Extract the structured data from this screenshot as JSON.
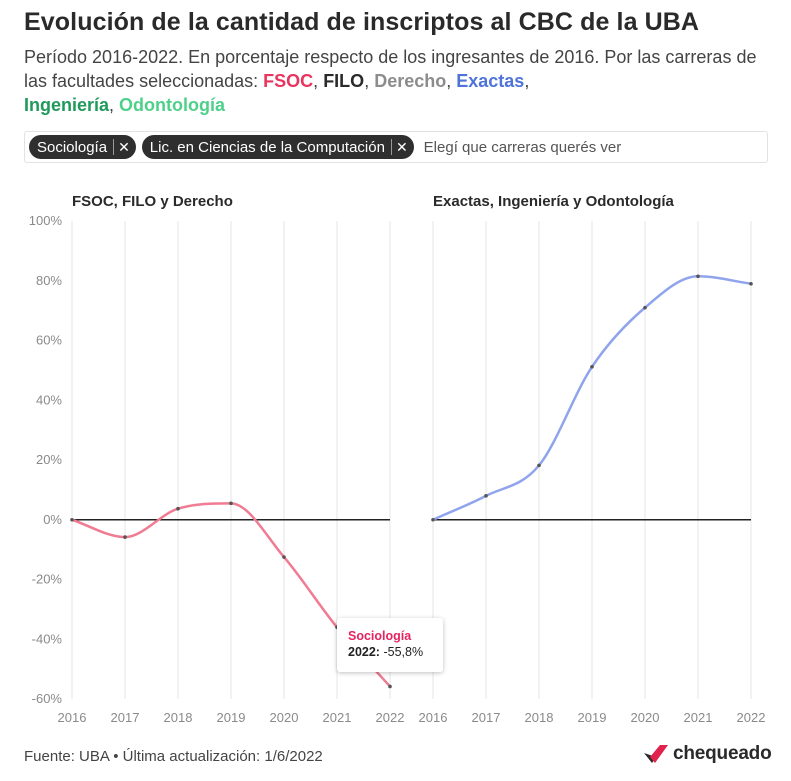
{
  "header": {
    "title": "Evolución de la cantidad de inscriptos al CBC de la UBA",
    "subtitle_text": "Período 2016-2022. En porcentaje respecto de los ingresantes de 2016. Por las carreras de las facultades seleccionadas: ",
    "faculties": [
      {
        "label": "FSOC",
        "color": "#e8355f"
      },
      {
        "label": "FILO",
        "color": "#2a2a2a"
      },
      {
        "label": "Derecho",
        "color": "#8c8c8c"
      },
      {
        "label": "Exactas",
        "color": "#4f73d9"
      },
      {
        "label": "Ingeniería",
        "color": "#1f9a5a"
      },
      {
        "label": "Odontología",
        "color": "#4fd08a"
      }
    ],
    "sep_comma": ",",
    "sep_comma_space": ", "
  },
  "filter": {
    "chips": [
      {
        "label": "Sociología",
        "remove_glyph": "✕"
      },
      {
        "label": "Lic. en Ciencias de la Computación",
        "remove_glyph": "✕"
      }
    ],
    "placeholder": "Elegí que carreras querés ver"
  },
  "chart_data": [
    {
      "type": "line",
      "title": "FSOC, FILO y Derecho",
      "x": [
        2016,
        2017,
        2018,
        2019,
        2020,
        2021,
        2022
      ],
      "ylim": [
        -60,
        100
      ],
      "yticks": [
        -60,
        -40,
        -20,
        0,
        20,
        40,
        60,
        80,
        100
      ],
      "ytick_labels": [
        "-60%",
        "-40%",
        "-20%",
        "0%",
        "20%",
        "40%",
        "60%",
        "80%",
        "100%"
      ],
      "xtick_labels": [
        "2016",
        "2017",
        "2018",
        "2019",
        "2020",
        "2021",
        "2022"
      ],
      "grid": "vertical",
      "series": [
        {
          "name": "Sociología",
          "color": "#f07b92",
          "values": [
            0,
            -5.8,
            3.7,
            5.5,
            -12.5,
            -36,
            -55.8
          ]
        }
      ]
    },
    {
      "type": "line",
      "title": "Exactas, Ingeniería y Odontología",
      "x": [
        2016,
        2017,
        2018,
        2019,
        2020,
        2021,
        2022
      ],
      "ylim": [
        -60,
        100
      ],
      "xtick_labels": [
        "2016",
        "2017",
        "2018",
        "2019",
        "2020",
        "2021",
        "2022"
      ],
      "grid": "vertical",
      "series": [
        {
          "name": "Lic. en Ciencias de la Computación",
          "color": "#8fa4ec",
          "values": [
            0,
            8,
            18.2,
            51.2,
            71,
            81.5,
            79
          ]
        }
      ]
    }
  ],
  "tooltip": {
    "series": "Sociología",
    "year_label": "2022:",
    "value_label": "-55,8%"
  },
  "footer": {
    "source": "Fuente: UBA • Última actualización: 1/6/2022"
  },
  "brand": {
    "name": "chequeado",
    "accent": "#e0224d",
    "dark": "#2a2a2a"
  }
}
